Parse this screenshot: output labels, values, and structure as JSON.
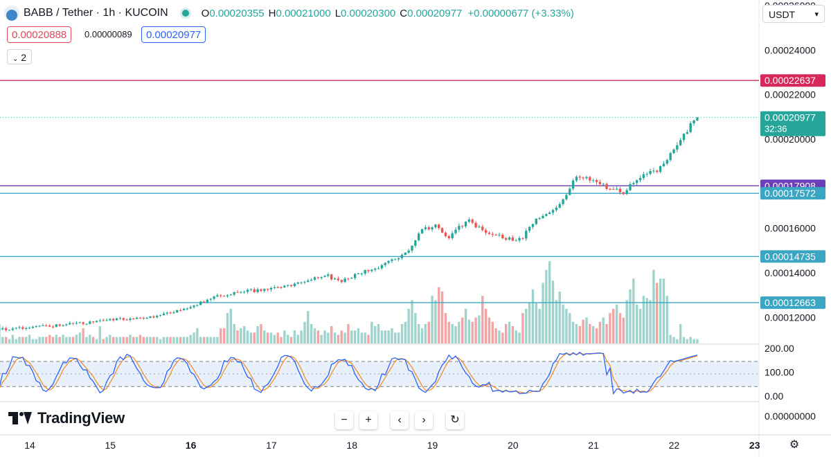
{
  "header": {
    "symbol": "BABB / Tether · 1h · KUCOIN",
    "open_label": "O",
    "open": "0.00020355",
    "high_label": "H",
    "high": "0.00021000",
    "low_label": "L",
    "low": "0.00020300",
    "close_label": "C",
    "close": "0.00020977",
    "change": "+0.00000677 (+3.33%)"
  },
  "quote": {
    "bid": "0.00020888",
    "spread": "0.00000089",
    "ask": "0.00020977"
  },
  "indicators_toggle": "2",
  "currency": "USDT",
  "branding": "TradingView",
  "colors": {
    "up": "#26a69a",
    "down": "#ef5350",
    "up_vol": "#9fd3cd",
    "down_vol": "#f2a5a4",
    "rsi_k": "#2962ff",
    "rsi_d": "#f28e2b",
    "res_red": "#d6285a",
    "res_purple": "#6b3fb8",
    "support": "#3aa6c4"
  },
  "price_axis": {
    "ticks": [
      "0.00026000",
      "0.00024000",
      "0.00022000",
      "0.00020000",
      "0.00016000",
      "0.00014000",
      "0.00012000"
    ],
    "tick_values": [
      0.00026,
      0.00024,
      0.00022,
      0.0002,
      0.00016,
      0.00014,
      0.00012
    ],
    "range": [
      0.000108,
      0.0002625
    ]
  },
  "horizontal_levels": [
    {
      "label": "0.00022637",
      "value": 0.00022637,
      "color": "#d6285a"
    },
    {
      "label": "0.00017908",
      "value": 0.00017908,
      "color": "#6b3fb8"
    },
    {
      "label": "0.00017572",
      "value": 0.00017572,
      "color": "#3aa6c4"
    },
    {
      "label": "0.00014735",
      "value": 0.00014735,
      "color": "#3aa6c4"
    },
    {
      "label": "0.00012663",
      "value": 0.00012663,
      "color": "#3aa6c4"
    }
  ],
  "last_price": {
    "label": "0.00020977",
    "countdown": "32:36",
    "value": 0.00020977
  },
  "oscillator_axis": {
    "ticks": [
      "200.00",
      "100.00",
      "0.00"
    ],
    "tick_values": [
      200,
      100,
      0
    ],
    "band": [
      40,
      145
    ],
    "mid": 93
  },
  "lower_pane_axis": {
    "ticks": [
      "0.00000000"
    ]
  },
  "time_axis": {
    "labels": [
      "14",
      "15",
      "16",
      "17",
      "18",
      "19",
      "20",
      "21",
      "22",
      "23"
    ],
    "bold": [
      "16",
      "23"
    ]
  },
  "controls": {
    "zoom_out": "−",
    "zoom_in": "+",
    "scroll_left": "‹",
    "scroll_right": "›",
    "reset": "↻"
  },
  "chart_data": {
    "type": "candlestick",
    "start_day": 14,
    "candle_hours": 1,
    "key_points": [
      [
        0,
        0.0001134
      ],
      [
        12,
        0.0001145
      ],
      [
        28,
        0.000116
      ],
      [
        38,
        0.0001172
      ],
      [
        46,
        0.0001185
      ],
      [
        56,
        0.00012
      ],
      [
        62,
        0.0001208
      ],
      [
        70,
        0.000124
      ],
      [
        76,
        0.000128
      ],
      [
        82,
        0.0001305
      ],
      [
        90,
        0.000132
      ],
      [
        100,
        0.000134
      ],
      [
        106,
        0.000137
      ],
      [
        112,
        0.0001385
      ],
      [
        116,
        0.000136
      ],
      [
        122,
        0.0001405
      ],
      [
        126,
        0.000142
      ],
      [
        130,
        0.0001445
      ],
      [
        136,
        0.00015
      ],
      [
        140,
        0.00016
      ],
      [
        144,
        0.000161
      ],
      [
        148,
        0.000156
      ],
      [
        150,
        0.00016
      ],
      [
        154,
        0.0001632
      ],
      [
        158,
        0.000159
      ],
      [
        164,
        0.000156
      ],
      [
        168,
        0.0001545
      ],
      [
        170,
        0.000156
      ],
      [
        174,
        0.000164
      ],
      [
        180,
        0.00017
      ],
      [
        184,
        0.000177
      ],
      [
        186,
        0.000184
      ],
      [
        188,
        0.000183
      ],
      [
        192,
        0.000181
      ],
      [
        196,
        0.0001775
      ],
      [
        200,
        0.000176
      ],
      [
        202,
        0.000179
      ],
      [
        206,
        0.0001835
      ],
      [
        210,
        0.000186
      ],
      [
        212,
        0.000188
      ],
      [
        216,
        0.000198
      ],
      [
        220,
        0.000206
      ],
      [
        222,
        0.0002097
      ]
    ],
    "volume_profile": [
      4,
      3,
      2,
      9,
      3,
      2,
      3,
      2,
      2,
      4,
      3,
      2,
      3,
      3,
      9,
      3,
      3,
      2,
      4,
      2,
      3,
      3,
      3,
      4,
      2,
      2,
      3,
      3,
      3,
      4,
      3,
      4,
      3,
      4,
      3,
      3,
      3,
      4,
      5,
      7,
      3,
      4,
      3,
      2,
      8,
      2,
      3,
      4,
      3,
      3,
      3,
      3,
      3,
      4,
      3,
      3,
      4,
      3,
      3,
      3,
      3,
      3,
      2,
      3,
      3,
      3,
      3,
      3,
      3,
      3,
      3,
      4,
      5,
      7,
      3,
      3,
      3,
      3,
      3,
      3,
      7,
      7,
      14,
      16,
      9,
      6,
      7,
      8,
      6,
      5,
      5,
      8,
      9,
      6,
      5,
      5,
      4,
      5,
      3,
      6,
      4,
      3,
      6,
      4,
      6,
      10,
      15,
      9,
      7,
      6,
      4,
      6,
      5,
      8,
      5,
      4,
      6,
      5,
      9,
      6,
      6,
      7,
      5,
      5,
      4,
      10,
      8,
      9,
      6,
      6,
      6,
      7,
      5,
      5,
      9,
      10,
      16,
      20,
      14,
      9,
      7,
      9,
      10,
      22,
      20,
      26,
      24,
      14,
      10,
      9,
      8,
      10,
      12,
      16,
      11,
      10,
      12,
      13,
      22,
      16,
      12,
      10,
      7,
      6,
      5,
      9,
      10,
      8,
      6,
      5,
      14,
      16,
      19,
      25,
      19,
      16,
      28,
      34,
      38,
      29,
      20,
      24,
      18,
      16,
      14,
      10,
      9,
      8,
      11,
      12,
      9,
      8,
      7,
      10,
      12,
      9,
      14,
      16,
      18,
      14,
      12,
      20,
      25,
      30,
      18,
      16,
      22,
      21,
      20,
      34,
      28,
      30,
      30,
      22
    ],
    "volume_scale": 40,
    "osc_seed": 9
  }
}
